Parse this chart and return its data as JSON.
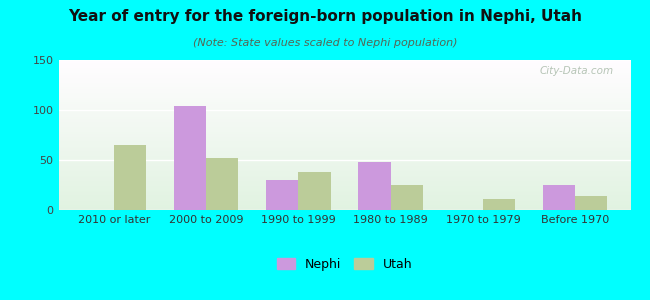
{
  "title": "Year of entry for the foreign-born population in Nephi, Utah",
  "subtitle": "(Note: State values scaled to Nephi population)",
  "categories": [
    "2010 or later",
    "2000 to 2009",
    "1990 to 1999",
    "1980 to 1989",
    "1970 to 1979",
    "Before 1970"
  ],
  "nephi_values": [
    0,
    104,
    30,
    48,
    0,
    25
  ],
  "utah_values": [
    65,
    52,
    38,
    25,
    11,
    14
  ],
  "nephi_color": "#cc99dd",
  "utah_color": "#bbcc99",
  "ylim": [
    0,
    150
  ],
  "yticks": [
    0,
    50,
    100,
    150
  ],
  "background_outer": "#00ffff",
  "bar_width": 0.35,
  "title_fontsize": 11,
  "subtitle_fontsize": 8,
  "tick_fontsize": 8,
  "legend_fontsize": 9,
  "watermark": "City-Data.com"
}
